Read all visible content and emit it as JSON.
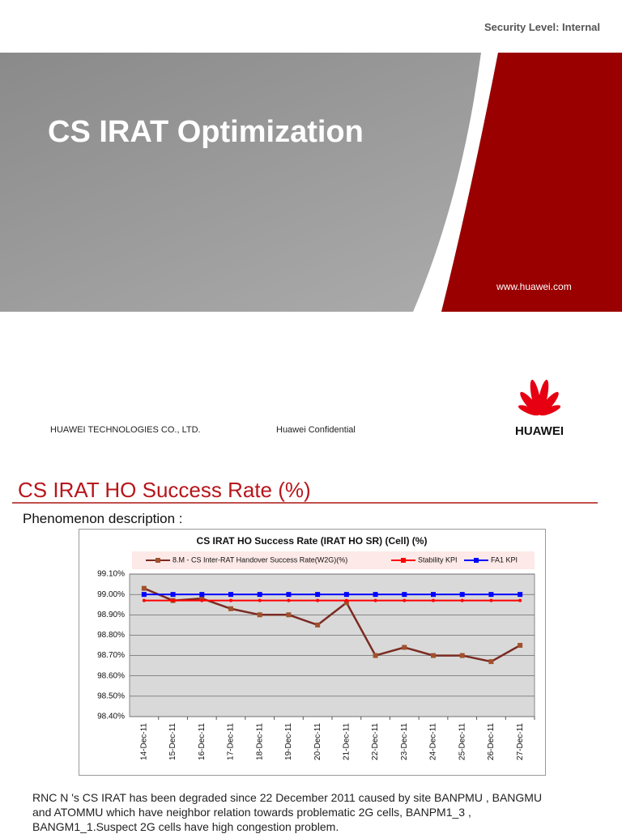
{
  "header": {
    "security_level": "Security Level: Internal"
  },
  "cover": {
    "title": "CS IRAT Optimization",
    "url": "www.huawei.com",
    "company": "HUAWEI TECHNOLOGIES CO., LTD.",
    "confidential": "Huawei Confidential",
    "logo_text": "HUAWEI"
  },
  "slide": {
    "heading": "CS IRAT HO Success Rate (%)",
    "subheading": "Phenomenon description :",
    "body": [
      "RNC N 's CS IRAT has been degraded since 22 December 2011 caused by site BANPMU , BANGMU",
      "and ATOMMU which have neighbor relation towards problematic 2G cells, BANPM1_3 ,",
      "BANGM1_1.Suspect 2G cells have high congestion problem."
    ]
  },
  "chart_data": {
    "type": "line",
    "title": "CS IRAT HO Success Rate (IRAT HO SR) (Cell) (%)",
    "categories": [
      "14-Dec-11",
      "15-Dec-11",
      "16-Dec-11",
      "17-Dec-11",
      "18-Dec-11",
      "19-Dec-11",
      "20-Dec-11",
      "21-Dec-11",
      "22-Dec-11",
      "23-Dec-11",
      "24-Dec-11",
      "25-Dec-11",
      "26-Dec-11",
      "27-Dec-11"
    ],
    "series": [
      {
        "name": "8.M - CS Inter-RAT Handover Success Rate(W2G)(%)",
        "color": "#7b2a22",
        "values": [
          99.03,
          98.97,
          98.98,
          98.93,
          98.9,
          98.9,
          98.85,
          98.96,
          98.7,
          98.74,
          98.7,
          98.7,
          98.67,
          98.75
        ]
      },
      {
        "name": "Stability KPI",
        "color": "#ff0000",
        "values": [
          98.97,
          98.97,
          98.97,
          98.97,
          98.97,
          98.97,
          98.97,
          98.97,
          98.97,
          98.97,
          98.97,
          98.97,
          98.97,
          98.97
        ]
      },
      {
        "name": "FA1 KPI",
        "color": "#0000ff",
        "values": [
          99.0,
          99.0,
          99.0,
          99.0,
          99.0,
          99.0,
          99.0,
          99.0,
          99.0,
          99.0,
          99.0,
          99.0,
          99.0,
          99.0
        ]
      }
    ],
    "ylim": [
      98.4,
      99.1
    ],
    "yticks": [
      {
        "value": 98.4,
        "label": "98.40%"
      },
      {
        "value": 98.5,
        "label": "98.50%"
      },
      {
        "value": 98.6,
        "label": "98.60%"
      },
      {
        "value": 98.7,
        "label": "98.70%"
      },
      {
        "value": 98.8,
        "label": "98.80%"
      },
      {
        "value": 98.9,
        "label": "98.90%"
      },
      {
        "value": 99.0,
        "label": "99.00%"
      },
      {
        "value": 99.1,
        "label": "99.10%"
      }
    ],
    "grid": true
  }
}
